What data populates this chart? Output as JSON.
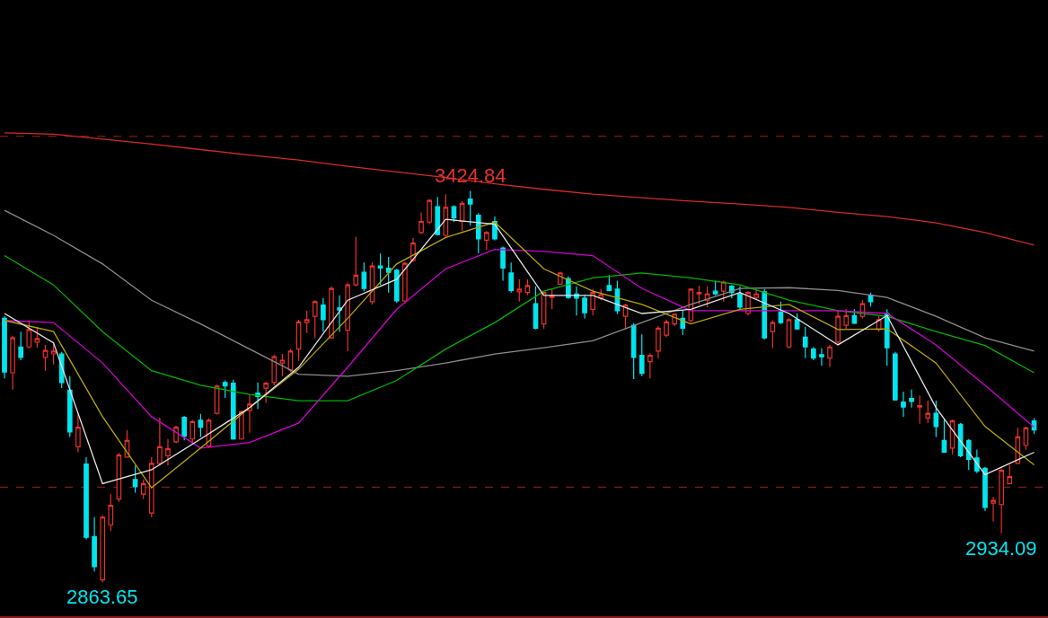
{
  "chart_data": {
    "type": "candlestick",
    "categories": [
      null,
      null,
      null,
      null,
      null,
      null,
      null,
      null,
      null,
      null,
      null,
      null,
      null,
      null,
      null,
      null,
      null,
      null,
      null,
      null,
      null,
      null,
      null,
      null,
      null,
      null,
      null,
      null,
      null,
      null,
      null,
      null,
      null,
      null,
      null,
      null,
      null,
      null,
      null,
      null,
      null,
      null,
      null,
      null,
      null,
      null,
      null,
      null,
      null,
      null,
      null,
      null,
      null,
      null,
      null,
      null,
      null,
      null,
      null,
      null,
      null,
      null,
      null,
      null,
      null,
      null,
      null,
      null,
      null,
      null,
      null,
      null,
      null,
      null,
      null,
      null,
      null,
      null,
      null,
      null,
      null,
      null,
      null,
      null,
      null,
      null,
      null,
      null,
      null,
      null,
      null,
      null,
      null,
      null,
      null,
      null,
      null,
      null,
      null,
      null,
      null,
      null,
      null,
      null,
      null,
      null,
      null,
      null,
      null,
      null,
      null,
      null,
      null,
      null,
      null,
      null,
      null,
      null,
      null,
      null,
      null,
      null,
      null,
      null,
      null,
      null,
      null
    ],
    "ohlc": [
      [
        3242,
        3245,
        3156,
        3165
      ],
      [
        3164,
        3217,
        3140,
        3214
      ],
      [
        3201,
        3223,
        3182,
        3186
      ],
      [
        3201,
        3239,
        3199,
        3226
      ],
      [
        3208,
        3230,
        3200,
        3213
      ],
      [
        3186,
        3204,
        3167,
        3196
      ],
      [
        3191,
        3208,
        3176,
        3195
      ],
      [
        3191,
        3194,
        3142,
        3150
      ],
      [
        3139,
        3159,
        3072,
        3079
      ],
      [
        3058,
        3104,
        3050,
        3086
      ],
      [
        3033,
        3043,
        2925,
        2928
      ],
      [
        2929,
        2957,
        2879,
        2886
      ],
      [
        2867,
        2960,
        2863.65,
        2957
      ],
      [
        2946,
        2990,
        2937,
        2974
      ],
      [
        2983,
        3049,
        2979,
        3046
      ],
      [
        3043,
        3082,
        3042,
        3067
      ],
      [
        3011,
        3031,
        2992,
        3001
      ],
      [
        2990,
        3011,
        2983,
        3005
      ],
      [
        2963,
        3043,
        2957,
        3034
      ],
      [
        3034,
        3100,
        3031,
        3058
      ],
      [
        3045,
        3069,
        3031,
        3055
      ],
      [
        3065,
        3088,
        3063,
        3086
      ],
      [
        3100,
        3102,
        3067,
        3073
      ],
      [
        3069,
        3096,
        3063,
        3094
      ],
      [
        3096,
        3105,
        3072,
        3086
      ],
      [
        3059,
        3099,
        3056,
        3096
      ],
      [
        3106,
        3147,
        3104,
        3145
      ],
      [
        3150,
        3153,
        3128,
        3145
      ],
      [
        3149,
        3154,
        3068,
        3069
      ],
      [
        3069,
        3110,
        3068,
        3108
      ],
      [
        3110,
        3133,
        3078,
        3119
      ],
      [
        3135,
        3150,
        3112,
        3130
      ],
      [
        3142,
        3151,
        3121,
        3149
      ],
      [
        3150,
        3190,
        3146,
        3187
      ],
      [
        3178,
        3191,
        3159,
        3182
      ],
      [
        3168,
        3198,
        3165,
        3195
      ],
      [
        3198,
        3240,
        3181,
        3237
      ],
      [
        3236,
        3253,
        3221,
        3240
      ],
      [
        3245,
        3268,
        3214,
        3266
      ],
      [
        3261,
        3271,
        3223,
        3240
      ],
      [
        3214,
        3288,
        3213,
        3285
      ],
      [
        3257,
        3275,
        3223,
        3254
      ],
      [
        3225,
        3293,
        3195,
        3290
      ],
      [
        3290,
        3359,
        3288,
        3304
      ],
      [
        3308,
        3322,
        3281,
        3285
      ],
      [
        3266,
        3322,
        3262,
        3317
      ],
      [
        3317,
        3335,
        3290,
        3314
      ],
      [
        3314,
        3330,
        3279,
        3308
      ],
      [
        3311,
        3313,
        3264,
        3267
      ],
      [
        3267,
        3323,
        3263,
        3321
      ],
      [
        3325,
        3357,
        3323,
        3350
      ],
      [
        3365,
        3394,
        3363,
        3381
      ],
      [
        3380,
        3413,
        3377,
        3411
      ],
      [
        3402,
        3416,
        3361,
        3362
      ],
      [
        3361,
        3420,
        3359,
        3401
      ],
      [
        3402,
        3404,
        3380,
        3386
      ],
      [
        3381,
        3410,
        3367,
        3407
      ],
      [
        3413,
        3424.84,
        3375,
        3406
      ],
      [
        3390,
        3393,
        3335,
        3356
      ],
      [
        3354,
        3367,
        3340,
        3365
      ],
      [
        3381,
        3388,
        3354,
        3356
      ],
      [
        3343,
        3345,
        3296,
        3314
      ],
      [
        3307,
        3322,
        3279,
        3282
      ],
      [
        3280,
        3298,
        3266,
        3284
      ],
      [
        3279,
        3298,
        3275,
        3289
      ],
      [
        3263,
        3288,
        3226,
        3228
      ],
      [
        3234,
        3281,
        3227,
        3279
      ],
      [
        3272,
        3284,
        3255,
        3275
      ],
      [
        3291,
        3309,
        3290,
        3307
      ],
      [
        3299,
        3302,
        3270,
        3272
      ],
      [
        3277,
        3288,
        3246,
        3271
      ],
      [
        3271,
        3275,
        3242,
        3250
      ],
      [
        3255,
        3284,
        3246,
        3279
      ],
      [
        3271,
        3284,
        3268,
        3276
      ],
      [
        3289,
        3304,
        3281,
        3282
      ],
      [
        3284,
        3296,
        3248,
        3253
      ],
      [
        3245,
        3263,
        3226,
        3261
      ],
      [
        3232,
        3235,
        3155,
        3186
      ],
      [
        3189,
        3219,
        3159,
        3163
      ],
      [
        3180,
        3192,
        3156,
        3189
      ],
      [
        3195,
        3231,
        3185,
        3228
      ],
      [
        3218,
        3240,
        3215,
        3237
      ],
      [
        3234,
        3249,
        3231,
        3248
      ],
      [
        3242,
        3253,
        3218,
        3228
      ],
      [
        3239,
        3285,
        3236,
        3284
      ],
      [
        3277,
        3289,
        3262,
        3279
      ],
      [
        3268,
        3288,
        3258,
        3277
      ],
      [
        3281,
        3296,
        3275,
        3277
      ],
      [
        3281,
        3296,
        3266,
        3294
      ],
      [
        3288,
        3290,
        3271,
        3279
      ],
      [
        3277,
        3288,
        3255,
        3258
      ],
      [
        3249,
        3281,
        3246,
        3279
      ],
      [
        3272,
        3284,
        3269,
        3277
      ],
      [
        3280,
        3284,
        3212,
        3214
      ],
      [
        3223,
        3239,
        3199,
        3236
      ],
      [
        3251,
        3266,
        3234,
        3236
      ],
      [
        3201,
        3242,
        3199,
        3240
      ],
      [
        3240,
        3249,
        3225,
        3227
      ],
      [
        3215,
        3230,
        3185,
        3201
      ],
      [
        3198,
        3201,
        3182,
        3185
      ],
      [
        3190,
        3199,
        3174,
        3187
      ],
      [
        3185,
        3204,
        3172,
        3201
      ],
      [
        3208,
        3253,
        3205,
        3245
      ],
      [
        3232,
        3255,
        3227,
        3246
      ],
      [
        3246,
        3255,
        3234,
        3235
      ],
      [
        3245,
        3268,
        3242,
        3263
      ],
      [
        3275,
        3279,
        3259,
        3266
      ],
      [
        3226,
        3245,
        3223,
        3240
      ],
      [
        3249,
        3255,
        3174,
        3200
      ],
      [
        3191,
        3194,
        3124,
        3125
      ],
      [
        3122,
        3137,
        3101,
        3115
      ],
      [
        3127,
        3140,
        3114,
        3123
      ],
      [
        3115,
        3131,
        3091,
        3117
      ],
      [
        3099,
        3124,
        3092,
        3106
      ],
      [
        3106,
        3124,
        3072,
        3087
      ],
      [
        3067,
        3097,
        3049,
        3050
      ],
      [
        3056,
        3097,
        3047,
        3095
      ],
      [
        3090,
        3092,
        3043,
        3045
      ],
      [
        3067,
        3069,
        3025,
        3040
      ],
      [
        3042,
        3054,
        3020,
        3023
      ],
      [
        3027,
        3029,
        2966,
        2971
      ],
      [
        2977,
        2986,
        2951,
        2981
      ],
      [
        2975,
        3027,
        2934.09,
        3024
      ],
      [
        3005,
        3032,
        3004,
        3015
      ],
      [
        3034,
        3085,
        3033,
        3072
      ],
      [
        3060,
        3087,
        3054,
        3085
      ],
      [
        3095,
        3099,
        3076,
        3082
      ]
    ],
    "colors": [
      "#00e5ee",
      "#e8312c",
      "#00e5ee",
      "#e8312c",
      "#e8312c",
      "#e8312c",
      "#e8312c",
      "#00e5ee",
      "#00e5ee",
      "#e8312c",
      "#00e5ee",
      "#00e5ee",
      "#e8312c",
      "#e8312c",
      "#e8312c",
      "#e8312c",
      "#00e5ee",
      "#e8312c",
      "#e8312c",
      "#e8312c",
      "#e8312c",
      "#e8312c",
      "#00e5ee",
      "#e8312c",
      "#00e5ee",
      "#e8312c",
      "#e8312c",
      "#00e5ee",
      "#00e5ee",
      "#e8312c",
      "#e8312c",
      "#00e5ee",
      "#e8312c",
      "#e8312c",
      "#e8312c",
      "#e8312c",
      "#e8312c",
      "#e8312c",
      "#e8312c",
      "#00e5ee",
      "#e8312c",
      "#00e5ee",
      "#e8312c",
      "#e8312c",
      "#00e5ee",
      "#e8312c",
      "#00e5ee",
      "#00e5ee",
      "#00e5ee",
      "#e8312c",
      "#e8312c",
      "#e8312c",
      "#e8312c",
      "#00e5ee",
      "#e8312c",
      "#00e5ee",
      "#e8312c",
      "#00e5ee",
      "#00e5ee",
      "#e8312c",
      "#00e5ee",
      "#00e5ee",
      "#00e5ee",
      "#e8312c",
      "#e8312c",
      "#00e5ee",
      "#e8312c",
      "#e8312c",
      "#e8312c",
      "#00e5ee",
      "#00e5ee",
      "#00e5ee",
      "#e8312c",
      "#e8312c",
      "#00e5ee",
      "#00e5ee",
      "#e8312c",
      "#00e5ee",
      "#00e5ee",
      "#e8312c",
      "#e8312c",
      "#e8312c",
      "#e8312c",
      "#00e5ee",
      "#e8312c",
      "#e8312c",
      "#e8312c",
      "#00e5ee",
      "#e8312c",
      "#00e5ee",
      "#00e5ee",
      "#e8312c",
      "#e8312c",
      "#00e5ee",
      "#e8312c",
      "#00e5ee",
      "#e8312c",
      "#00e5ee",
      "#00e5ee",
      "#00e5ee",
      "#00e5ee",
      "#e8312c",
      "#e8312c",
      "#e8312c",
      "#00e5ee",
      "#e8312c",
      "#00e5ee",
      "#e8312c",
      "#00e5ee",
      "#00e5ee",
      "#00e5ee",
      "#00e5ee",
      "#e8312c",
      "#e8312c",
      "#00e5ee",
      "#00e5ee",
      "#e8312c",
      "#00e5ee",
      "#00e5ee",
      "#00e5ee",
      "#00e5ee",
      "#e8312c",
      "#e8312c",
      "#e8312c",
      "#e8312c",
      "#e8312c",
      "#00e5ee"
    ],
    "series": [
      {
        "type": "line",
        "color": "#d42a2a",
        "values": [
          3508,
          null,
          null,
          null,
          null,
          null,
          3506,
          null,
          null,
          null,
          null,
          null,
          3499,
          null,
          null,
          null,
          null,
          null,
          3492,
          null,
          null,
          null,
          null,
          null,
          3484,
          null,
          null,
          null,
          null,
          null,
          3476,
          null,
          null,
          null,
          null,
          null,
          3469,
          null,
          null,
          null,
          null,
          null,
          3460,
          null,
          null,
          null,
          null,
          null,
          3452,
          null,
          null,
          null,
          null,
          null,
          3444,
          null,
          null,
          null,
          null,
          null,
          3435,
          null,
          null,
          null,
          null,
          null,
          3427,
          null,
          null,
          null,
          null,
          null,
          3420,
          null,
          null,
          null,
          null,
          null,
          3415,
          null,
          null,
          null,
          null,
          null,
          3410,
          null,
          null,
          null,
          null,
          null,
          3406,
          null,
          null,
          null,
          null,
          null,
          3401,
          null,
          null,
          null,
          null,
          null,
          3394,
          null,
          null,
          null,
          null,
          null,
          3388,
          null,
          null,
          null,
          null,
          null,
          3379,
          null,
          null,
          null,
          null,
          null,
          3365,
          null,
          null,
          null,
          null,
          null,
          3347
        ]
      },
      {
        "type": "line",
        "color": "#8c8c8c",
        "values": [
          3397,
          null,
          null,
          null,
          null,
          null,
          3361,
          null,
          null,
          null,
          null,
          null,
          3320,
          null,
          null,
          null,
          null,
          null,
          3268,
          null,
          null,
          null,
          null,
          null,
          3234,
          null,
          null,
          null,
          null,
          null,
          3198,
          null,
          null,
          null,
          null,
          null,
          3162,
          null,
          null,
          null,
          null,
          null,
          3159,
          null,
          null,
          null,
          null,
          null,
          3167,
          null,
          null,
          null,
          null,
          null,
          3178,
          null,
          null,
          null,
          null,
          null,
          3191,
          null,
          null,
          null,
          null,
          null,
          3200,
          null,
          null,
          null,
          null,
          null,
          3210,
          null,
          null,
          null,
          null,
          null,
          3236,
          null,
          null,
          null,
          null,
          null,
          3262,
          null,
          null,
          null,
          null,
          null,
          3285,
          null,
          null,
          null,
          null,
          null,
          3286,
          null,
          null,
          null,
          null,
          null,
          3282,
          null,
          null,
          null,
          null,
          null,
          3272,
          null,
          null,
          null,
          null,
          null,
          3245,
          null,
          null,
          null,
          null,
          null,
          3214,
          null,
          null,
          null,
          null,
          null,
          3195
        ]
      },
      {
        "type": "line",
        "color": "#00b400",
        "values": [
          3332,
          null,
          null,
          null,
          null,
          null,
          3290,
          null,
          null,
          null,
          null,
          null,
          3223,
          null,
          null,
          null,
          null,
          null,
          3167,
          null,
          null,
          null,
          null,
          null,
          3146,
          null,
          null,
          null,
          null,
          null,
          3133,
          null,
          null,
          null,
          null,
          null,
          3124,
          null,
          null,
          null,
          null,
          null,
          3124,
          null,
          null,
          null,
          null,
          null,
          3153,
          null,
          null,
          null,
          null,
          null,
          3198,
          null,
          null,
          null,
          null,
          null,
          3236,
          null,
          null,
          null,
          null,
          null,
          3281,
          null,
          null,
          null,
          null,
          null,
          3300,
          null,
          null,
          null,
          null,
          null,
          3307,
          null,
          null,
          null,
          null,
          null,
          3300,
          null,
          null,
          null,
          null,
          null,
          3290,
          null,
          null,
          null,
          null,
          null,
          3268,
          null,
          null,
          null,
          null,
          null,
          3253,
          null,
          null,
          null,
          null,
          null,
          3245,
          null,
          null,
          null,
          null,
          null,
          3223,
          null,
          null,
          null,
          null,
          null,
          3203,
          null,
          null,
          null,
          null,
          null,
          3164
        ]
      },
      {
        "type": "line",
        "color": "#d400d4",
        "values": [
          3239,
          null,
          null,
          null,
          null,
          null,
          3236,
          null,
          null,
          null,
          null,
          null,
          3178,
          null,
          null,
          null,
          null,
          null,
          3101,
          null,
          null,
          null,
          null,
          null,
          3056,
          null,
          null,
          null,
          null,
          null,
          3064,
          null,
          null,
          null,
          null,
          null,
          3092,
          null,
          null,
          null,
          null,
          null,
          3172,
          null,
          null,
          null,
          null,
          null,
          3255,
          null,
          null,
          null,
          null,
          null,
          3313,
          null,
          null,
          null,
          null,
          null,
          3341,
          null,
          null,
          null,
          null,
          null,
          3338,
          null,
          null,
          null,
          null,
          null,
          3332,
          null,
          null,
          null,
          null,
          null,
          3285,
          null,
          null,
          null,
          null,
          null,
          3253,
          null,
          null,
          null,
          null,
          null,
          3253,
          null,
          null,
          null,
          null,
          null,
          3253,
          null,
          null,
          null,
          null,
          null,
          3253,
          null,
          null,
          null,
          null,
          null,
          3249,
          null,
          null,
          null,
          null,
          null,
          3204,
          null,
          null,
          null,
          null,
          null,
          3146,
          null,
          null,
          null,
          null,
          null,
          3086
        ]
      },
      {
        "type": "line",
        "color": "#b8a800",
        "values": [
          3239,
          null,
          null,
          null,
          null,
          null,
          3223,
          null,
          null,
          null,
          null,
          null,
          3101,
          null,
          null,
          null,
          null,
          null,
          2999,
          null,
          null,
          null,
          null,
          null,
          3056,
          null,
          null,
          null,
          null,
          null,
          3114,
          null,
          null,
          null,
          null,
          null,
          3169,
          null,
          null,
          null,
          null,
          null,
          3242,
          null,
          null,
          null,
          null,
          null,
          3320,
          null,
          null,
          null,
          null,
          null,
          3358,
          null,
          null,
          null,
          null,
          null,
          3380,
          null,
          null,
          null,
          null,
          null,
          3313,
          null,
          null,
          null,
          null,
          null,
          3281,
          null,
          null,
          null,
          null,
          null,
          3262,
          null,
          null,
          null,
          null,
          null,
          3234,
          null,
          null,
          null,
          null,
          null,
          3255,
          null,
          null,
          null,
          null,
          null,
          3262,
          null,
          null,
          null,
          null,
          null,
          3226,
          null,
          null,
          null,
          null,
          null,
          3227,
          null,
          null,
          null,
          null,
          null,
          3178,
          null,
          null,
          null,
          null,
          null,
          3087,
          null,
          null,
          null,
          null,
          null,
          3032
        ]
      },
      {
        "type": "line",
        "color": "#e6e6e6",
        "values": [
          3249,
          null,
          null,
          null,
          null,
          null,
          3207,
          null,
          null,
          null,
          null,
          null,
          3005,
          null,
          null,
          null,
          null,
          null,
          3025,
          null,
          null,
          null,
          null,
          null,
          3069,
          null,
          null,
          null,
          null,
          null,
          3114,
          null,
          null,
          null,
          null,
          null,
          3172,
          null,
          null,
          null,
          null,
          null,
          3268,
          null,
          null,
          null,
          null,
          null,
          3298,
          null,
          null,
          null,
          null,
          null,
          3384,
          null,
          null,
          null,
          null,
          null,
          3377,
          null,
          null,
          null,
          null,
          null,
          3275,
          null,
          null,
          null,
          null,
          null,
          3275,
          null,
          null,
          null,
          null,
          null,
          3249,
          null,
          null,
          null,
          null,
          null,
          3255,
          null,
          null,
          null,
          null,
          null,
          3279,
          null,
          null,
          null,
          null,
          null,
          3249,
          null,
          null,
          null,
          null,
          null,
          3204,
          null,
          null,
          null,
          null,
          null,
          3246,
          null,
          null,
          null,
          null,
          null,
          3114,
          null,
          null,
          null,
          null,
          null,
          3018,
          null,
          null,
          null,
          null,
          null,
          3050
        ]
      }
    ],
    "ref_lines": [
      {
        "axis": "y",
        "value": 3503,
        "color": "#a01e1e",
        "line_style": "dashed"
      },
      {
        "axis": "y",
        "value": 3000,
        "color": "#a01e1e",
        "line_style": "dashed"
      }
    ],
    "annotations": [
      {
        "text": "3424.84",
        "y": 3424.84
      },
      {
        "text": "2863.65",
        "y": 2863.65
      },
      {
        "text": "2934.09",
        "y": 2934.09
      }
    ],
    "tick_labels": false
  }
}
